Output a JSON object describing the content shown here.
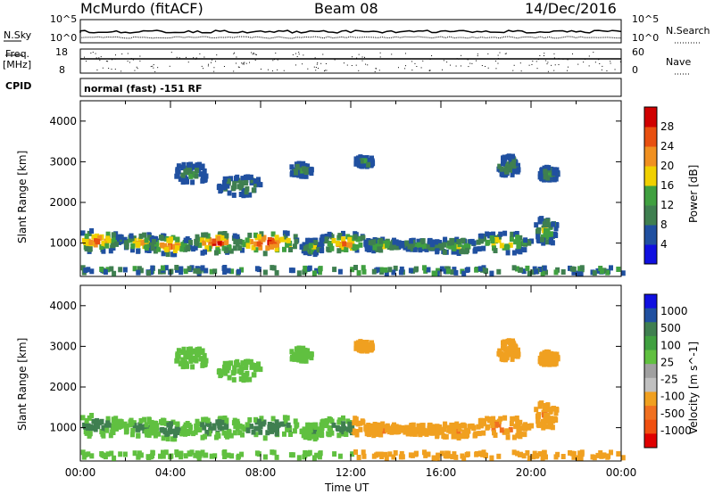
{
  "header": {
    "radar": "McMurdo (fitACF)",
    "beam": "Beam 08",
    "date": "14/Dec/2016"
  },
  "top_panels": {
    "nsky_label": "N.Sky",
    "nsky_top": "10^5",
    "nsky_bottom": "10^0",
    "nsearch_label": "N.Search",
    "nsearch_top": "10^5",
    "nsearch_bottom": "10^0",
    "freq_label": "Freq.",
    "freq_unit": "[MHz]",
    "freq_top": "18",
    "freq_bottom": "8",
    "nave_label": "Nave",
    "nave_top": "60",
    "nave_bottom": "0",
    "cpid_label": "CPID",
    "cpid_text": "normal (fast) -151 RF"
  },
  "colors": {
    "power": [
      "#1010e0",
      "#2050a0",
      "#3f7f50",
      "#40a040",
      "#f0d000",
      "#f09020",
      "#e85010",
      "#d00000"
    ],
    "velocity": [
      "#e00000",
      "#f05010",
      "#f07020",
      "#f0a020",
      "#c0c0c0",
      "#a0a0a0",
      "#60c040",
      "#40a040",
      "#3f7f50",
      "#2050a0",
      "#1010e0"
    ]
  },
  "chart_data": [
    {
      "type": "heatmap",
      "name": "power",
      "xlabel": "",
      "ylabel": "Slant Range [km]",
      "yticks": [
        "1000",
        "2000",
        "3000",
        "4000"
      ],
      "colorbar_label": "Power [dB]",
      "colorbar_ticks": [
        "4",
        "8",
        "12",
        "16",
        "20",
        "24",
        "28"
      ],
      "xlim": [
        "00:00",
        "24:00"
      ],
      "ylim_km": [
        180,
        4500
      ]
    },
    {
      "type": "heatmap",
      "name": "velocity",
      "xlabel": "Time UT",
      "ylabel": "Slant Range [km]",
      "yticks": [
        "1000",
        "2000",
        "3000",
        "4000"
      ],
      "xticks": [
        "00:00",
        "04:00",
        "08:00",
        "12:00",
        "16:00",
        "20:00",
        "00:00"
      ],
      "colorbar_label": "Velocity [m s^-1]",
      "colorbar_ticks": [
        "1000",
        "500",
        "100",
        "25",
        "-25",
        "-100",
        "-500",
        "-1000"
      ],
      "xlim": [
        "00:00",
        "24:00"
      ],
      "ylim_km": [
        180,
        4500
      ]
    }
  ]
}
